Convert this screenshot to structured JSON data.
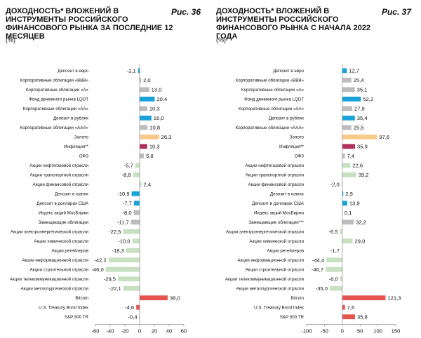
{
  "colors": {
    "gray": "#bdbdbd",
    "lightgreen": "#c6e0c0",
    "blue": "#1aa3d9",
    "gold": "#f9c98a",
    "crimson": "#b0315e",
    "red": "#e5534f"
  },
  "chart_data": [
    {
      "type": "bar",
      "orientation": "horizontal",
      "title": "ДОХОДНОСТЬ* ВЛОЖЕНИЙ В ИНСТРУМЕНТЫ РОССИЙСКОГО ФИНАНСОВОГО РЫНКА ЗА ПОСЛЕДНИЕ 12 МЕСЯЦЕВ",
      "figure_label": "Рис. 36",
      "unit": "(%)",
      "xlim": [
        -60,
        60
      ],
      "xticks": [
        -60,
        -40,
        -20,
        0,
        20,
        40,
        60
      ],
      "grid": false,
      "categories": [
        "Депозит в евро",
        "Корпоративные облигации «ВВВ»",
        "Корпоративные облигации «А»",
        "Фонд денежного рынка LQDT",
        "Корпоративные облигации «АА»",
        "Депозит в рублях",
        "Корпоративные облигации «ААА»",
        "Золото",
        "Инфляция**",
        "ОФЗ",
        "Акции нефтегазовой отрасли",
        "Акции транспортной отрасли",
        "Акции финансовой отрасли",
        "Депозит в юанях",
        "Депозит в долларах США",
        "Индекс акций МосБиржи",
        "Замещающие облигации",
        "Акции электроэнергетической отрасли",
        "Акции химической отрасли",
        "Акции ретейлеров",
        "Акции информационной отрасли",
        "Акции строительной отрасли",
        "Акции телекоммуникационной отрасли",
        "Акции металлургической отрасли",
        "Bitcoin",
        "U.S. Treasury Bond Index",
        "S&P 500 TR"
      ],
      "values": [
        -2.1,
        2.0,
        13.0,
        20.4,
        10.3,
        16.0,
        10.8,
        26.3,
        10.3,
        5.8,
        -5.7,
        -8.8,
        2.4,
        -10.9,
        -7.7,
        -8.0,
        -11.7,
        -22.5,
        -10.0,
        -18.3,
        -42.2,
        -46.0,
        -29.5,
        -22.1,
        38.0,
        -4.6,
        -0.4
      ],
      "value_labels": [
        "-2,1",
        "2,0",
        "13,0",
        "20,4",
        "10,3",
        "16,0",
        "10,8",
        "26,3",
        "10,3",
        "5,8",
        "-5,7",
        "-8,8",
        "2,4",
        "-10,9",
        "-7,7",
        "-8,0",
        "-11,7",
        "-22,5",
        "-10,0",
        "-18,3",
        "-42,2",
        "-46,0",
        "-29,5",
        "-22,1",
        "38,0",
        "-4,6",
        "-0,4"
      ],
      "bar_colors": [
        "blue",
        "gray",
        "gray",
        "blue",
        "gray",
        "blue",
        "gray",
        "gold",
        "crimson",
        "gray",
        "lightgreen",
        "lightgreen",
        "lightgreen",
        "blue",
        "blue",
        "gray",
        "gray",
        "lightgreen",
        "lightgreen",
        "lightgreen",
        "lightgreen",
        "lightgreen",
        "lightgreen",
        "lightgreen",
        "red",
        "red",
        "red"
      ]
    },
    {
      "type": "bar",
      "orientation": "horizontal",
      "title": "ДОХОДНОСТЬ* ВЛОЖЕНИЙ В ИНСТРУМЕНТЫ РОССИЙСКОГО ФИНАНСОВОГО РЫНКА С НАЧАЛА 2022 ГОДА",
      "figure_label": "Рис. 37",
      "unit": "(%)",
      "xlim": [
        -100,
        150
      ],
      "xticks": [
        -100,
        -50,
        0,
        50,
        100,
        150
      ],
      "grid": false,
      "categories": [
        "Депозит в евро",
        "Корпоративные облигации «ВВВ»",
        "Корпоративные облигации «А»",
        "Фонд денежного рынка LQDT",
        "Корпоративные облигации «АА»",
        "Депозит в рублях",
        "Корпоративные облигации «ААА»",
        "Золото",
        "Инфляция**",
        "ОФЗ",
        "Акции нефтегазовой отрасли",
        "Акции транспортной отрасли",
        "Акции финансовой отрасли",
        "Депозит в юанях",
        "Депозит в долларах США",
        "Индекс акций МосБиржи",
        "Замещающие облигации***",
        "Акции электроэнергетической отрасли",
        "Акции химической отрасли",
        "Акции ретейлеров",
        "Акции информационной отрасли",
        "Акции строительной отрасли",
        "Акции телекоммуникационной отрасли",
        "Акции металлургической отрасли",
        "Bitcoin",
        "U.S. Treasury Bond Index",
        "S&P 500 TR"
      ],
      "values": [
        12.7,
        25.4,
        35.1,
        52.2,
        27.9,
        35.4,
        25.5,
        97.6,
        35.9,
        7.4,
        22.6,
        39.2,
        -2.0,
        2.9,
        13.9,
        0.1,
        32.2,
        -6.5,
        29.0,
        -1.7,
        -44.4,
        -46.7,
        -6.0,
        -35.0,
        121.3,
        7.6,
        35.8
      ],
      "value_labels": [
        "12,7",
        "25,4",
        "35,1",
        "52,2",
        "27,9",
        "35,4",
        "25,5",
        "97,6",
        "35,9",
        "7,4",
        "22,6",
        "39,2",
        "-2,0",
        "2,9",
        "13,9",
        "0,1",
        "32,2",
        "-6,5",
        "29,0",
        "-1,7",
        "-44,4",
        "-46,7",
        "-6,0",
        "-35,0",
        "121,3",
        "7,6",
        "35,8"
      ],
      "bar_colors": [
        "blue",
        "gray",
        "gray",
        "blue",
        "gray",
        "blue",
        "gray",
        "gold",
        "crimson",
        "gray",
        "lightgreen",
        "lightgreen",
        "lightgreen",
        "blue",
        "blue",
        "gray",
        "gray",
        "lightgreen",
        "lightgreen",
        "lightgreen",
        "lightgreen",
        "lightgreen",
        "lightgreen",
        "lightgreen",
        "red",
        "red",
        "red"
      ]
    }
  ]
}
